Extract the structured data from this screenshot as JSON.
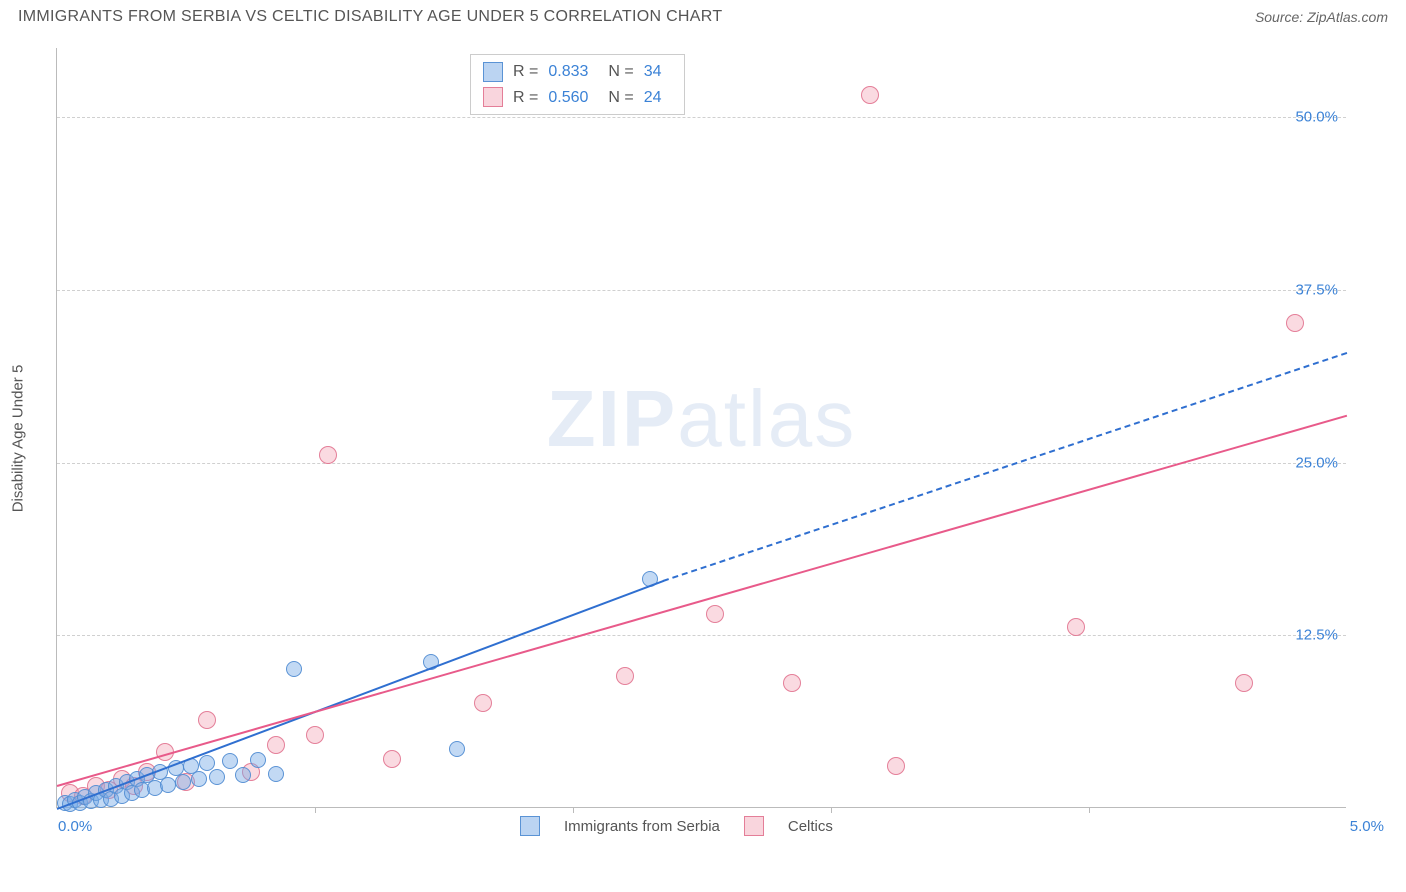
{
  "header": {
    "title": "IMMIGRANTS FROM SERBIA VS CELTIC DISABILITY AGE UNDER 5 CORRELATION CHART",
    "source": "Source: ZipAtlas.com"
  },
  "chart": {
    "type": "scatter",
    "y_axis_label": "Disability Age Under 5",
    "x_range": [
      0.0,
      5.0
    ],
    "y_range": [
      0.0,
      55.0
    ],
    "y_ticks": [
      12.5,
      25.0,
      37.5,
      50.0
    ],
    "y_tick_labels": [
      "12.5%",
      "25.0%",
      "37.5%",
      "50.0%"
    ],
    "x_ticks": [
      1.0,
      2.0,
      3.0,
      4.0
    ],
    "x_origin_label": "0.0%",
    "x_max_label": "5.0%",
    "grid_color": "#d0d0d0",
    "axis_color": "#bbbbbb",
    "background_color": "#ffffff",
    "watermark": {
      "part1": "ZIP",
      "part2": "atlas"
    }
  },
  "stats": {
    "r_label": "R =",
    "n_label": "N =",
    "series": [
      {
        "r": "0.833",
        "n": "34",
        "color": "blue"
      },
      {
        "r": "0.560",
        "n": "24",
        "color": "pink"
      }
    ]
  },
  "legend": {
    "series1": "Immigrants from Serbia",
    "series2": "Celtics"
  },
  "series_blue": {
    "name": "Immigrants from Serbia",
    "fill_color": "#78aae6",
    "stroke_color": "#508cd2",
    "marker_size": 16,
    "trend": {
      "x1": 0.0,
      "y1": 0.0,
      "x2": 2.35,
      "y2": 16.5,
      "dashed_x2": 5.0,
      "dashed_y2": 33.0
    },
    "points": [
      [
        0.03,
        0.3
      ],
      [
        0.05,
        0.2
      ],
      [
        0.07,
        0.5
      ],
      [
        0.09,
        0.3
      ],
      [
        0.11,
        0.7
      ],
      [
        0.13,
        0.4
      ],
      [
        0.15,
        1.0
      ],
      [
        0.17,
        0.5
      ],
      [
        0.19,
        1.2
      ],
      [
        0.21,
        0.6
      ],
      [
        0.23,
        1.5
      ],
      [
        0.25,
        0.8
      ],
      [
        0.27,
        1.8
      ],
      [
        0.29,
        1.0
      ],
      [
        0.31,
        2.0
      ],
      [
        0.33,
        1.2
      ],
      [
        0.35,
        2.3
      ],
      [
        0.38,
        1.4
      ],
      [
        0.4,
        2.5
      ],
      [
        0.43,
        1.6
      ],
      [
        0.46,
        2.8
      ],
      [
        0.49,
        1.8
      ],
      [
        0.52,
        3.0
      ],
      [
        0.55,
        2.0
      ],
      [
        0.58,
        3.2
      ],
      [
        0.62,
        2.2
      ],
      [
        0.67,
        3.3
      ],
      [
        0.72,
        2.3
      ],
      [
        0.78,
        3.4
      ],
      [
        0.85,
        2.4
      ],
      [
        0.92,
        10.0
      ],
      [
        1.45,
        10.5
      ],
      [
        1.55,
        4.2
      ],
      [
        2.3,
        16.5
      ]
    ]
  },
  "series_pink": {
    "name": "Celtics",
    "fill_color": "#f096aa",
    "stroke_color": "#e16e8c",
    "marker_size": 18,
    "trend": {
      "x1": 0.0,
      "y1": 1.7,
      "x2": 5.0,
      "y2": 28.5
    },
    "points": [
      [
        0.05,
        1.0
      ],
      [
        0.1,
        0.8
      ],
      [
        0.15,
        1.5
      ],
      [
        0.2,
        1.2
      ],
      [
        0.25,
        2.0
      ],
      [
        0.3,
        1.5
      ],
      [
        0.35,
        2.5
      ],
      [
        0.42,
        4.0
      ],
      [
        0.5,
        1.8
      ],
      [
        0.58,
        6.3
      ],
      [
        0.75,
        2.5
      ],
      [
        0.85,
        4.5
      ],
      [
        1.0,
        5.2
      ],
      [
        1.05,
        25.5
      ],
      [
        1.3,
        3.5
      ],
      [
        1.65,
        7.5
      ],
      [
        2.2,
        9.5
      ],
      [
        2.55,
        14.0
      ],
      [
        2.85,
        9.0
      ],
      [
        3.15,
        51.5
      ],
      [
        3.25,
        3.0
      ],
      [
        3.95,
        13.0
      ],
      [
        4.6,
        9.0
      ],
      [
        4.8,
        35.0
      ]
    ]
  }
}
